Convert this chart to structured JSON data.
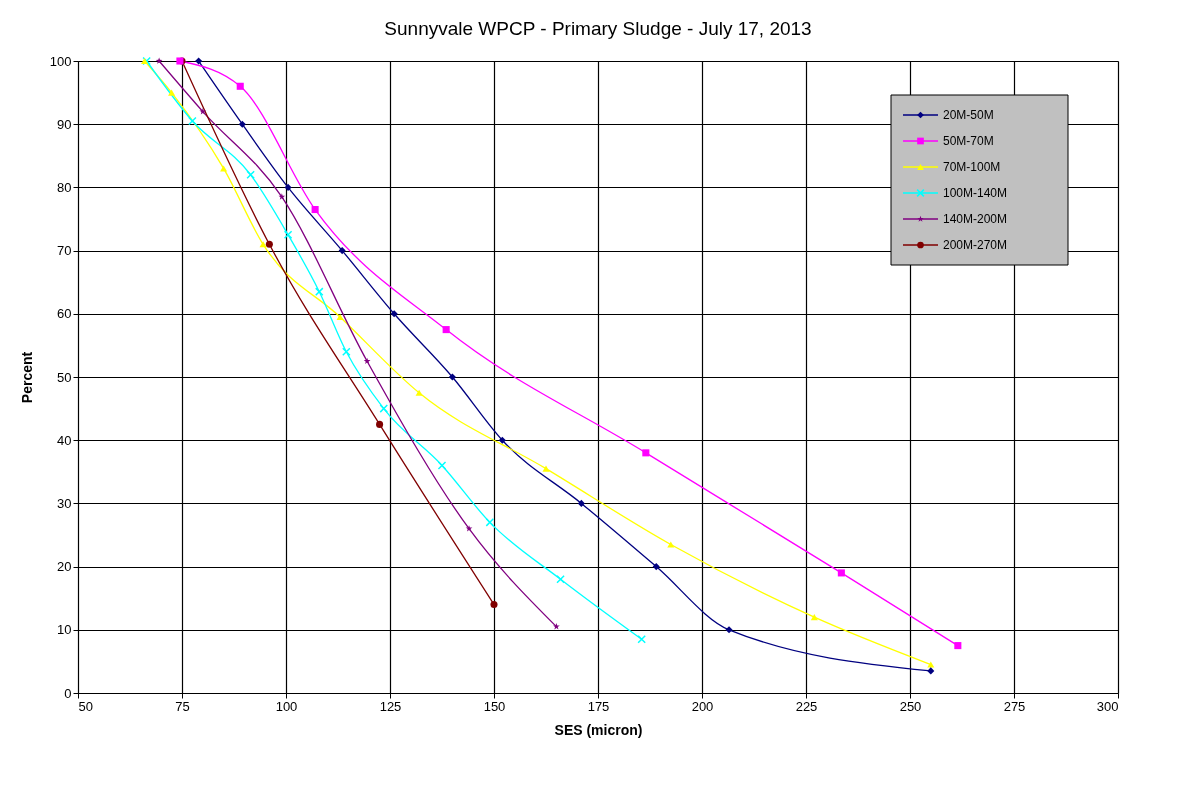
{
  "chart_data": {
    "type": "line",
    "title": "Sunnyvale WPCP - Primary Sludge - July 17, 2013",
    "xlabel": "SES (micron)",
    "ylabel": "Percent",
    "xlim": [
      50,
      300
    ],
    "xticks": [
      50,
      75,
      100,
      125,
      150,
      175,
      200,
      225,
      250,
      275,
      300
    ],
    "ylim": [
      0,
      100
    ],
    "yticks": [
      0,
      10,
      20,
      30,
      40,
      50,
      60,
      70,
      80,
      90,
      100
    ],
    "grid": true,
    "legend": "top right",
    "series": [
      {
        "name": "20M-50M",
        "color": "#000080",
        "marker": "diamond",
        "x": [
          79,
          89.5,
          100.5,
          113.5,
          126,
          140,
          152,
          171,
          189,
          206.5,
          255
        ],
        "values": [
          100,
          90,
          80,
          70,
          60,
          50,
          40,
          30,
          20,
          10,
          3.5
        ]
      },
      {
        "name": "50M-70M",
        "color": "#ff00ff",
        "marker": "square",
        "x": [
          74.5,
          89,
          107,
          138.5,
          186.5,
          233.5,
          261.5
        ],
        "values": [
          100,
          96,
          76.5,
          57.5,
          38,
          19,
          7.5
        ]
      },
      {
        "name": "70M-100M",
        "color": "#ffff00",
        "marker": "triangle",
        "x": [
          66,
          72.5,
          85,
          94.5,
          113,
          132,
          162.5,
          192.5,
          227,
          255
        ],
        "values": [
          100,
          95,
          83,
          71,
          59.5,
          47.5,
          35.5,
          23.5,
          12,
          4.5
        ]
      },
      {
        "name": "100M-140M",
        "color": "#00ffff",
        "marker": "cross",
        "x": [
          66.5,
          77.5,
          91.5,
          100.5,
          108,
          114.5,
          123.5,
          137.5,
          149,
          166,
          185.5
        ],
        "values": [
          100,
          90.5,
          82,
          72.5,
          63.5,
          54,
          45,
          36,
          27,
          18,
          8.5
        ]
      },
      {
        "name": "140M-200M",
        "color": "#800080",
        "marker": "star",
        "x": [
          69.5,
          80,
          99,
          119.5,
          144,
          165
        ],
        "values": [
          100,
          92,
          78.5,
          52.5,
          26,
          10.5
        ]
      },
      {
        "name": "200M-270M",
        "color": "#800000",
        "marker": "circle",
        "x": [
          75,
          96,
          122.5,
          150
        ],
        "values": [
          100,
          71,
          42.5,
          14
        ]
      }
    ]
  }
}
